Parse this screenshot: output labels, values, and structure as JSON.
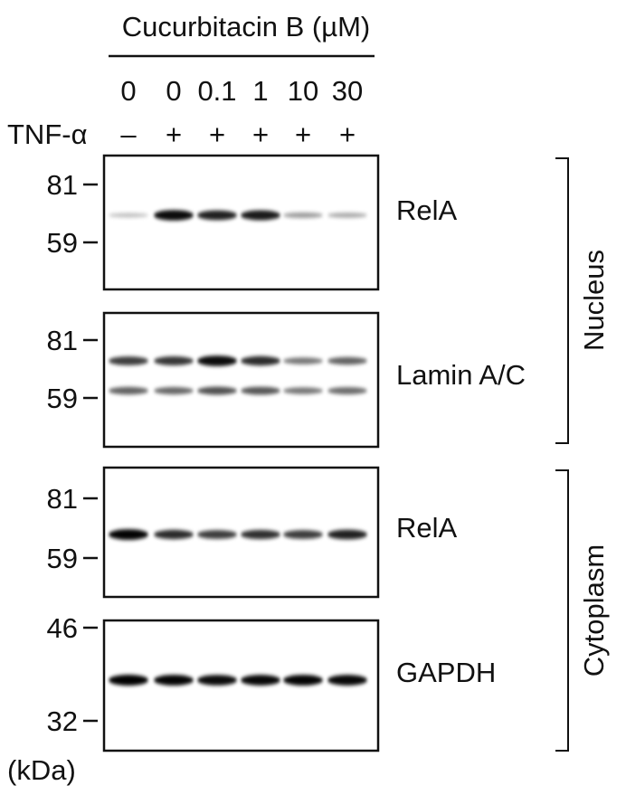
{
  "header": {
    "treatment_label": "Cucurbitacin B (µM)",
    "concentrations": [
      "0",
      "0",
      "0.1",
      "1",
      "10",
      "30"
    ],
    "tnf_label": "TNF-α",
    "tnf_signs": [
      "–",
      "+",
      "+",
      "+",
      "+",
      "+"
    ]
  },
  "panels": [
    {
      "name": "nucleus-rela",
      "label": "RelA",
      "markers": [
        {
          "text": "81"
        },
        {
          "text": "59"
        }
      ],
      "bands": [
        {
          "intensity": [
            0.12,
            0.95,
            0.85,
            0.88,
            0.28,
            0.22
          ]
        }
      ]
    },
    {
      "name": "nucleus-lamin",
      "label": "Lamin A/C",
      "markers": [
        {
          "text": "81"
        },
        {
          "text": "59"
        }
      ],
      "bands": [
        {
          "intensity": [
            0.72,
            0.75,
            0.95,
            0.8,
            0.45,
            0.55
          ]
        },
        {
          "intensity": [
            0.55,
            0.52,
            0.62,
            0.6,
            0.45,
            0.5
          ]
        }
      ]
    },
    {
      "name": "cytoplasm-rela",
      "label": "RelA",
      "markers": [
        {
          "text": "81"
        },
        {
          "text": "59"
        }
      ],
      "bands": [
        {
          "intensity": [
            0.98,
            0.8,
            0.72,
            0.78,
            0.72,
            0.85
          ]
        }
      ]
    },
    {
      "name": "cytoplasm-gapdh",
      "label": "GAPDH",
      "markers": [
        {
          "text": "46"
        },
        {
          "text": "32"
        }
      ],
      "bands": [
        {
          "intensity": [
            1.0,
            0.98,
            0.95,
            0.97,
            0.98,
            0.97
          ]
        }
      ]
    }
  ],
  "unit_label": "(kDa)",
  "groups": [
    {
      "name": "nucleus",
      "label": "Nucleus"
    },
    {
      "name": "cytoplasm",
      "label": "Cytoplasm"
    }
  ],
  "colors": {
    "band": "#000000",
    "frame": "#111111",
    "background": "#ffffff"
  }
}
